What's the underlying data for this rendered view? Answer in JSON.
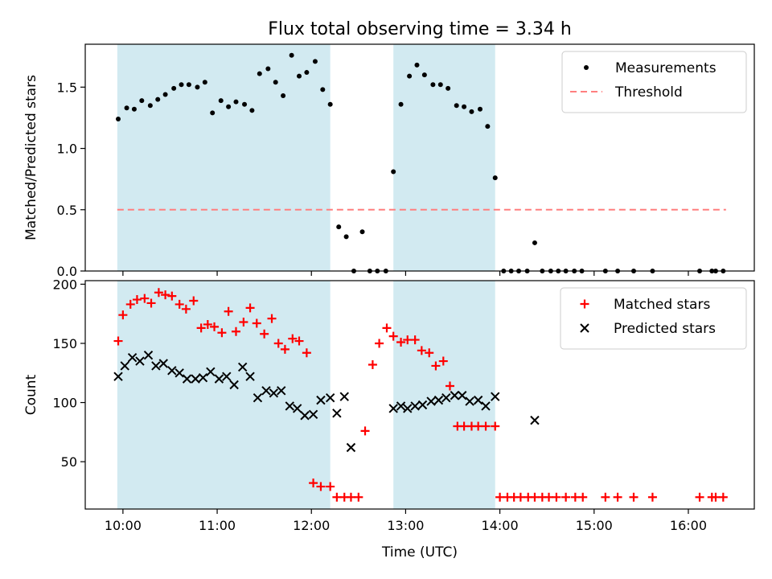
{
  "chart_data": {
    "title": "Flux total observing time = 3.34 h",
    "xlabel": "Time (UTC)",
    "x_tick_labels": [
      "10:00",
      "11:00",
      "12:00",
      "13:00",
      "14:00",
      "15:00",
      "16:00"
    ],
    "x_tick_hours": [
      10,
      11,
      12,
      13,
      14,
      15,
      16
    ],
    "xlim_hours": [
      9.6,
      16.7
    ],
    "shaded_intervals_hours": [
      [
        9.94,
        12.2
      ],
      [
        12.87,
        13.95
      ]
    ],
    "shade_color": "#add8e6",
    "panels": [
      {
        "type": "scatter",
        "ylabel": "Matched/Predicted stars",
        "ylim": [
          0,
          1.85
        ],
        "y_ticks": [
          0.0,
          0.5,
          1.0,
          1.5
        ],
        "y_tick_labels": [
          "0.0",
          "0.5",
          "1.0",
          "1.5"
        ],
        "legend_position": "top-right",
        "threshold": {
          "name": "Threshold",
          "value": 0.5,
          "x_range_hours": [
            9.94,
            16.4
          ],
          "color": "#ff7f7f",
          "style": "dashed"
        },
        "series": [
          {
            "name": "Measurements",
            "marker": "dot",
            "color": "#000000",
            "x": [
              9.95,
              10.04,
              10.12,
              10.2,
              10.29,
              10.37,
              10.45,
              10.54,
              10.62,
              10.7,
              10.79,
              10.87,
              10.95,
              11.04,
              11.12,
              11.2,
              11.29,
              11.37,
              11.45,
              11.54,
              11.62,
              11.7,
              11.79,
              11.87,
              11.95,
              12.04,
              12.12,
              12.2,
              12.29,
              12.37,
              12.45,
              12.54,
              12.62,
              12.7,
              12.79,
              12.87,
              12.95,
              13.04,
              13.12,
              13.2,
              13.29,
              13.37,
              13.45,
              13.54,
              13.62,
              13.7,
              13.79,
              13.87,
              13.95,
              14.04,
              14.12,
              14.2,
              14.29,
              14.37,
              14.45,
              14.54,
              14.62,
              14.7,
              14.79,
              14.87,
              15.12,
              15.25,
              15.42,
              15.62,
              16.12,
              16.25,
              16.29,
              16.37
            ],
            "y": [
              1.24,
              1.33,
              1.32,
              1.39,
              1.35,
              1.4,
              1.44,
              1.49,
              1.52,
              1.52,
              1.5,
              1.54,
              1.29,
              1.39,
              1.34,
              1.38,
              1.36,
              1.31,
              1.61,
              1.65,
              1.54,
              1.43,
              1.76,
              1.59,
              1.62,
              1.71,
              1.48,
              1.36,
              0.36,
              0.28,
              0.0,
              0.32,
              0.0,
              0.0,
              0.0,
              0.81,
              1.36,
              1.59,
              1.68,
              1.6,
              1.52,
              1.52,
              1.49,
              1.35,
              1.34,
              1.3,
              1.32,
              1.18,
              0.76,
              0.0,
              0.0,
              0.0,
              0.0,
              0.23,
              0.0,
              0.0,
              0.0,
              0.0,
              0.0,
              0.0,
              0.0,
              0.0,
              0.0,
              0.0,
              0.0,
              0.0,
              0.0,
              0.0
            ]
          }
        ]
      },
      {
        "type": "scatter",
        "ylabel": "Count",
        "ylim": [
          10,
          203
        ],
        "y_ticks": [
          50,
          100,
          150,
          200
        ],
        "y_tick_labels": [
          "50",
          "100",
          "150",
          "200"
        ],
        "legend_position": "top-right",
        "series": [
          {
            "name": "Matched stars",
            "marker": "plus",
            "color": "#ff0000",
            "x": [
              9.95,
              10.0,
              10.08,
              10.15,
              10.23,
              10.3,
              10.38,
              10.45,
              10.52,
              10.6,
              10.67,
              10.75,
              10.83,
              10.9,
              10.97,
              11.05,
              11.12,
              11.2,
              11.28,
              11.35,
              11.42,
              11.5,
              11.58,
              11.65,
              11.72,
              11.8,
              11.87,
              11.95,
              12.02,
              12.1,
              12.2,
              12.27,
              12.35,
              12.42,
              12.5,
              12.57,
              12.65,
              12.72,
              12.8,
              12.87,
              12.95,
              13.02,
              13.1,
              13.17,
              13.25,
              13.32,
              13.4,
              13.47,
              13.55,
              13.62,
              13.7,
              13.77,
              13.85,
              13.95,
              14.0,
              14.08,
              14.15,
              14.22,
              14.3,
              14.37,
              14.45,
              14.52,
              14.6,
              14.7,
              14.8,
              14.88,
              15.12,
              15.25,
              15.42,
              15.62,
              16.12,
              16.25,
              16.29,
              16.37
            ],
            "y": [
              152,
              174,
              183,
              187,
              188,
              184,
              193,
              191,
              190,
              183,
              179,
              186,
              163,
              166,
              164,
              159,
              177,
              160,
              168,
              180,
              167,
              158,
              171,
              150,
              145,
              154,
              152,
              142,
              32,
              29,
              29,
              20,
              20,
              20,
              20,
              76,
              132,
              150,
              163,
              156,
              151,
              153,
              153,
              144,
              142,
              131,
              135,
              114,
              80,
              80,
              80,
              80,
              80,
              80,
              20,
              20,
              20,
              20,
              20,
              20,
              20,
              20,
              20,
              20,
              20,
              20,
              20,
              20,
              20,
              20,
              20,
              20,
              20,
              20
            ]
          },
          {
            "name": "Predicted stars",
            "marker": "x",
            "color": "#000000",
            "x": [
              9.95,
              10.02,
              10.1,
              10.18,
              10.27,
              10.35,
              10.43,
              10.52,
              10.6,
              10.68,
              10.77,
              10.85,
              10.93,
              11.02,
              11.1,
              11.18,
              11.27,
              11.35,
              11.43,
              11.52,
              11.6,
              11.68,
              11.77,
              11.85,
              11.93,
              12.02,
              12.1,
              12.2,
              12.27,
              12.35,
              12.42,
              12.87,
              12.95,
              13.02,
              13.1,
              13.18,
              13.27,
              13.35,
              13.43,
              13.52,
              13.6,
              13.68,
              13.77,
              13.85,
              13.95,
              14.37
            ],
            "y": [
              122,
              131,
              138,
              135,
              140,
              131,
              133,
              127,
              125,
              120,
              120,
              121,
              126,
              120,
              122,
              115,
              130,
              122,
              104,
              110,
              108,
              110,
              97,
              95,
              89,
              90,
              102,
              104,
              91,
              105,
              62,
              95,
              97,
              95,
              97,
              98,
              101,
              102,
              104,
              106,
              106,
              101,
              102,
              97,
              105,
              85
            ]
          }
        ]
      }
    ]
  }
}
